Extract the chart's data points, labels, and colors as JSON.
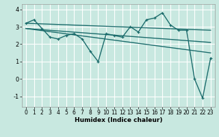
{
  "xlabel": "Humidex (Indice chaleur)",
  "background_color": "#c8e8e0",
  "grid_color": "#ffffff",
  "line_color": "#1a6b6b",
  "x_data": [
    0,
    1,
    2,
    3,
    4,
    5,
    6,
    7,
    8,
    9,
    10,
    11,
    12,
    13,
    14,
    15,
    16,
    17,
    18,
    19,
    20,
    21,
    22,
    23
  ],
  "series1": [
    3.2,
    3.4,
    2.9,
    2.4,
    2.3,
    2.5,
    2.6,
    2.3,
    1.6,
    1.0,
    2.6,
    2.5,
    2.4,
    3.0,
    2.7,
    3.4,
    3.5,
    3.8,
    3.1,
    2.8,
    2.8,
    0.0,
    -1.1,
    1.2
  ],
  "trend1_x": [
    0,
    23
  ],
  "trend1_y": [
    3.2,
    2.8
  ],
  "trend2_x": [
    0,
    23
  ],
  "trend2_y": [
    2.9,
    2.1
  ],
  "trend3_x": [
    0,
    23
  ],
  "trend3_y": [
    2.9,
    1.5
  ],
  "xlim": [
    -0.5,
    23.5
  ],
  "ylim": [
    -1.6,
    4.3
  ],
  "yticks": [
    -1,
    0,
    1,
    2,
    3,
    4
  ],
  "xticks": [
    0,
    1,
    2,
    3,
    4,
    5,
    6,
    7,
    8,
    9,
    10,
    11,
    12,
    13,
    14,
    15,
    16,
    17,
    18,
    19,
    20,
    21,
    22,
    23
  ],
  "tick_fontsize": 5.5,
  "xlabel_fontsize": 6.5,
  "lw": 1.0
}
